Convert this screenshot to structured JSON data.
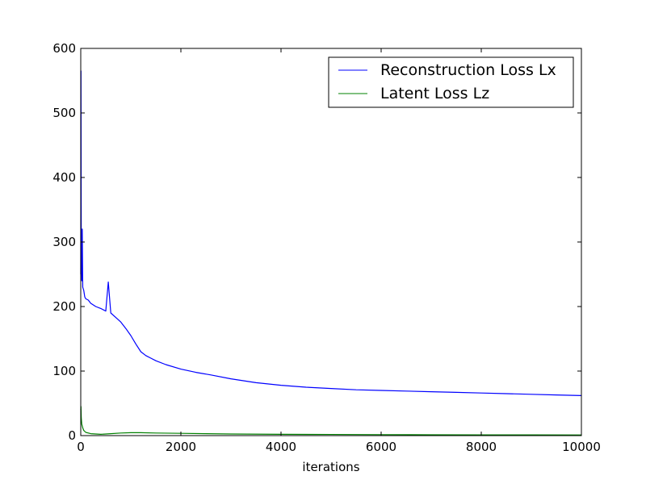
{
  "chart_data": {
    "type": "line",
    "title": "",
    "xlabel": "iterations",
    "ylabel": "",
    "xlim": [
      0,
      10000
    ],
    "ylim": [
      0,
      600
    ],
    "grid": false,
    "legend_position": "top-right",
    "x_ticks": [
      0,
      2000,
      4000,
      6000,
      8000,
      10000
    ],
    "x_tick_labels": [
      "0",
      "2000",
      "4000",
      "6000",
      "8000",
      "10000"
    ],
    "y_ticks": [
      0,
      100,
      200,
      300,
      400,
      500,
      600
    ],
    "y_tick_labels": [
      "0",
      "100",
      "200",
      "300",
      "400",
      "500",
      "600"
    ],
    "series": [
      {
        "name": "Reconstruction Loss Lx",
        "color": "#0000ff",
        "x": [
          0,
          5,
          10,
          20,
          30,
          40,
          60,
          80,
          100,
          150,
          200,
          300,
          400,
          500,
          550,
          600,
          700,
          800,
          900,
          1000,
          1100,
          1200,
          1300,
          1400,
          1500,
          1700,
          2000,
          2300,
          2600,
          3000,
          3500,
          4000,
          4500,
          5000,
          5500,
          6000,
          6500,
          7000,
          7500,
          8000,
          8500,
          9000,
          9500,
          10000
        ],
        "y": [
          250,
          565,
          300,
          240,
          320,
          230,
          225,
          215,
          212,
          210,
          205,
          200,
          197,
          193,
          238,
          190,
          183,
          176,
          166,
          155,
          142,
          130,
          124,
          120,
          116,
          110,
          103,
          98,
          94,
          88,
          82,
          78,
          75,
          73,
          71,
          70,
          69,
          68,
          67,
          66,
          65,
          64,
          63,
          62
        ]
      },
      {
        "name": "Latent Loss Lz",
        "color": "#008000",
        "x": [
          0,
          5,
          10,
          20,
          40,
          60,
          100,
          200,
          400,
          600,
          800,
          1000,
          1200,
          1500,
          2000,
          2500,
          3000,
          4000,
          5000,
          6000,
          7000,
          8000,
          9000,
          10000
        ],
        "y": [
          40,
          45,
          28,
          18,
          12,
          8,
          5,
          3,
          2,
          3,
          4,
          4.5,
          4.5,
          4,
          3.5,
          3,
          2.5,
          2,
          1.8,
          1.5,
          1.3,
          1.2,
          1.1,
          1.0
        ]
      }
    ]
  }
}
